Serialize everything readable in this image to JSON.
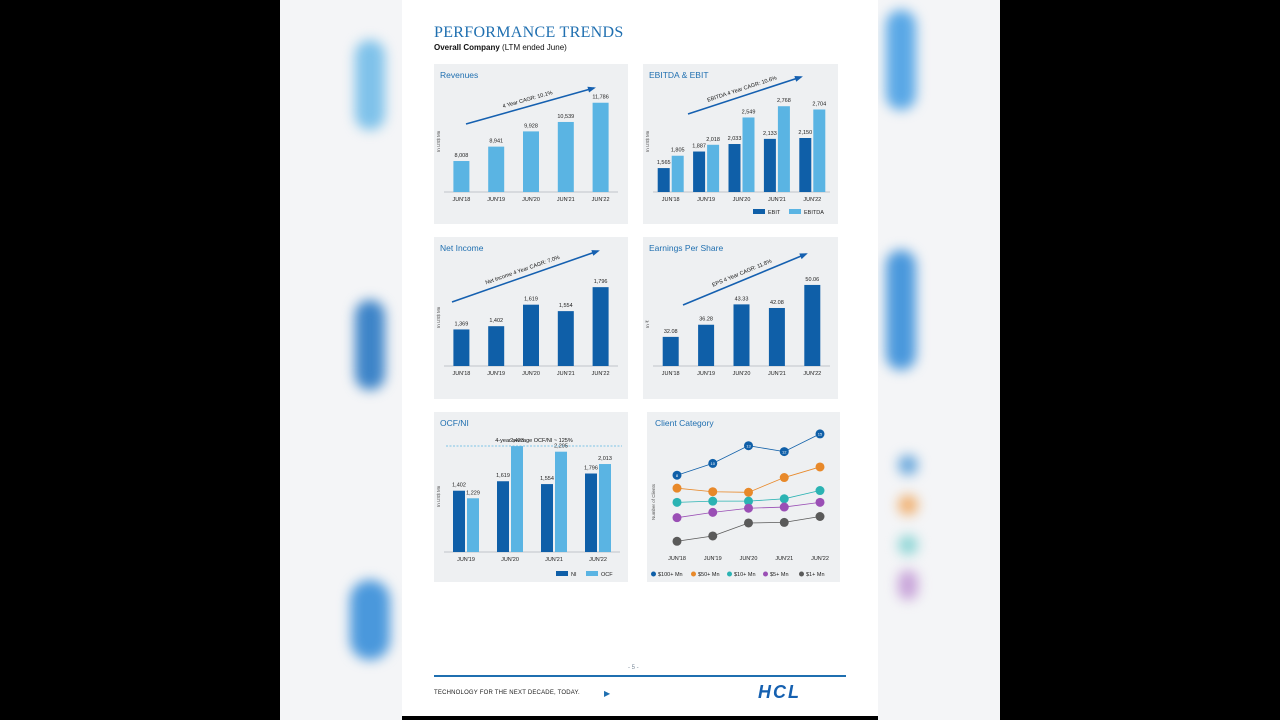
{
  "page": {
    "title": "PERFORMANCE TRENDS",
    "subtitle_bold": "Overall Company",
    "subtitle_rest": " (LTM ended June)",
    "page_number": "- 5 -",
    "footer_text": "TECHNOLOGY FOR THE NEXT DECADE, TODAY.",
    "footer_arrow": "▶",
    "logo": "HCL"
  },
  "colors": {
    "dark_blue": "#0f5fa8",
    "light_blue": "#5ab4e3",
    "title_blue": "#1f6fb0",
    "c100": "#0f5fa8",
    "c50": "#e8892a",
    "c10": "#2bb3b3",
    "c5": "#9a4fb5",
    "c1": "#5a5a5a"
  },
  "chart_data": [
    {
      "id": "revenues",
      "type": "bar",
      "title": "Revenues",
      "ylabel": "In US$ Mn",
      "categories": [
        "JUN'18",
        "JUN'19",
        "JUN'20",
        "JUN'21",
        "JUN'22"
      ],
      "series": [
        {
          "values": [
            8008,
            8941,
            9928,
            10539,
            11786
          ],
          "labels": [
            "8,008",
            "8,941",
            "9,928",
            "10,539",
            "11,786"
          ]
        }
      ],
      "ylim": [
        6000,
        13000
      ],
      "annotation": "4 Year CAGR: 10.1%"
    },
    {
      "id": "ebitda",
      "type": "bar",
      "title": "EBITDA & EBIT",
      "ylabel": "In US$ Mn",
      "categories": [
        "JUN'18",
        "JUN'19",
        "JUN'20",
        "JUN'21",
        "JUN'22"
      ],
      "series": [
        {
          "name": "EBIT",
          "values": [
            1565,
            1887,
            2033,
            2133,
            2150
          ],
          "labels": [
            "1,565",
            "1,887",
            "2,033",
            "2,133",
            "2,150"
          ]
        },
        {
          "name": "EBITDA",
          "values": [
            1805,
            2018,
            2549,
            2768,
            2704
          ],
          "labels": [
            "1,805",
            "2,018",
            "2,549",
            "2,768",
            "2,704"
          ]
        }
      ],
      "ylim": [
        1100,
        3200
      ],
      "annotation": "EBITDA 4 Year CAGR: 10.6%",
      "legend": "bottom-right"
    },
    {
      "id": "net_income",
      "type": "bar",
      "title": "Net Income",
      "ylabel": "In US$ Mn",
      "categories": [
        "JUN'18",
        "JUN'19",
        "JUN'20",
        "JUN'21",
        "JUN'22"
      ],
      "series": [
        {
          "values": [
            1369,
            1402,
            1619,
            1554,
            1796
          ],
          "labels": [
            "1,369",
            "1,402",
            "1,619",
            "1,554",
            "1,796"
          ]
        }
      ],
      "ylim": [
        1000,
        2050
      ],
      "annotation": "Net Income 4 Year CAGR: 7.0%"
    },
    {
      "id": "eps",
      "type": "bar",
      "title": "Earnings Per Share",
      "ylabel": "In ₹",
      "categories": [
        "JUN'18",
        "JUN'19",
        "JUN'20",
        "JUN'21",
        "JUN'22"
      ],
      "series": [
        {
          "values": [
            32.08,
            36.28,
            43.33,
            42.08,
            50.06
          ],
          "labels": [
            "32.08",
            "36.28",
            "43.33",
            "42.08",
            "50.06"
          ]
        }
      ],
      "ylim": [
        22,
        58
      ],
      "annotation": "EPS 4 Year CAGR: 11.8%"
    },
    {
      "id": "ocf",
      "type": "bar",
      "title": "OCF/NI",
      "ylabel": "In US$ Mn",
      "categories": [
        "JUN'19",
        "JUN'20",
        "JUN'21",
        "JUN'22"
      ],
      "series": [
        {
          "name": "NI",
          "values": [
            1402,
            1619,
            1554,
            1796
          ],
          "labels": [
            "1,402",
            "1,619",
            "1,554",
            "1,796"
          ]
        },
        {
          "name": "OCF",
          "values": [
            1229,
            2423,
            2295,
            2013
          ],
          "labels": [
            "1,229",
            "2,423",
            "2,295",
            "2,013"
          ]
        }
      ],
      "ylim": [
        0,
        2700
      ],
      "annotation": "4-year average OCF/NI ~ 125%",
      "legend": "bottom-right"
    },
    {
      "id": "client",
      "type": "line",
      "title": "Client Category",
      "ylabel": "Number of Clients",
      "categories": [
        "JUN'18",
        "JUN'19",
        "JUN'20",
        "JUN'21",
        "JUN'22"
      ],
      "series": [
        {
          "name": "$100+ Mn",
          "values": [
            8,
            10,
            13,
            12,
            15
          ],
          "labels": [
            "8",
            "10",
            "13",
            "12",
            "15"
          ]
        },
        {
          "name": "$50+ Mn",
          "values": [
            5.8,
            5.2,
            5.1,
            7.6,
            9.4
          ],
          "labels": [
            "",
            "",
            "",
            "",
            ""
          ]
        },
        {
          "name": "$10+ Mn",
          "values": [
            3.4,
            3.6,
            3.6,
            4.0,
            5.4
          ],
          "labels": [
            "",
            "",
            "",
            "",
            ""
          ]
        },
        {
          "name": "$5+ Mn",
          "values": [
            0.8,
            1.7,
            2.4,
            2.6,
            3.4
          ],
          "labels": [
            "",
            "",
            "",
            "",
            ""
          ]
        },
        {
          "name": "$1+ Mn",
          "values": [
            -3.2,
            -2.3,
            -0.1,
            0.0,
            1.0
          ],
          "labels": [
            "",
            "",
            "",
            "",
            ""
          ]
        }
      ],
      "legend": "bottom"
    }
  ]
}
